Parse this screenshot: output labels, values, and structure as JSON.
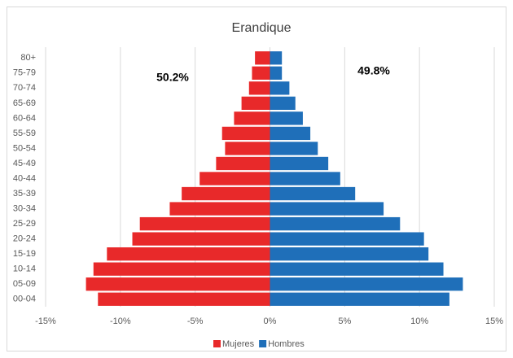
{
  "chart_data": {
    "type": "pyramid",
    "title": "Erandique",
    "categories": [
      "00-04",
      "05-09",
      "10-14",
      "15-19",
      "20-24",
      "25-29",
      "30-34",
      "35-39",
      "40-44",
      "45-49",
      "50-54",
      "55-59",
      "60-64",
      "65-69",
      "70-74",
      "75-79",
      "80+"
    ],
    "series": [
      {
        "name": "Mujeres",
        "color": "#e8292a",
        "values": [
          -11.5,
          -12.3,
          -11.8,
          -10.9,
          -9.2,
          -8.7,
          -6.7,
          -5.9,
          -4.7,
          -3.6,
          -3.0,
          -3.2,
          -2.4,
          -1.9,
          -1.4,
          -1.2,
          -1.0
        ]
      },
      {
        "name": "Hombres",
        "color": "#1f6fb9",
        "values": [
          12.0,
          12.9,
          11.6,
          10.6,
          10.3,
          8.7,
          7.6,
          5.7,
          4.7,
          3.9,
          3.2,
          2.7,
          2.2,
          1.7,
          1.3,
          0.8,
          0.8
        ]
      }
    ],
    "xlim": [
      -15,
      15
    ],
    "xticks": [
      {
        "value": -15,
        "label": "-15%"
      },
      {
        "value": -10,
        "label": "-10%"
      },
      {
        "value": -5,
        "label": "-5%"
      },
      {
        "value": 0,
        "label": "0%"
      },
      {
        "value": 5,
        "label": "5%"
      },
      {
        "value": 10,
        "label": "10%"
      },
      {
        "value": 15,
        "label": "15%"
      }
    ],
    "grid": true,
    "legend": "bottom",
    "annotations": [
      {
        "text": "50.2%"
      },
      {
        "text": "49.8%"
      }
    ]
  }
}
